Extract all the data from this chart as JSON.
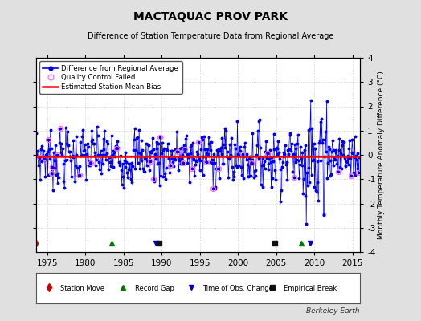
{
  "title": "MACTAQUAC PROV PARK",
  "subtitle": "Difference of Station Temperature Data from Regional Average",
  "ylabel": "Monthly Temperature Anomaly Difference (°C)",
  "xlabel_years": [
    1975,
    1980,
    1985,
    1990,
    1995,
    2000,
    2005,
    2010,
    2015
  ],
  "xlim": [
    1973.5,
    2016
  ],
  "ylim": [
    -4,
    4
  ],
  "mean_bias": -0.05,
  "background_color": "#e0e0e0",
  "plot_bg_color": "#ffffff",
  "line_color": "#0000ee",
  "bias_color": "#ff0000",
  "qc_color": "#ff66ff",
  "station_move_color": "#cc0000",
  "record_gap_color": "#007700",
  "obs_change_color": "#0000cc",
  "empirical_break_color": "#111111",
  "watermark": "Berkeley Earth",
  "station_moves": [
    1973.5
  ],
  "record_gaps": [
    1983.5,
    2008.3
  ],
  "obs_changes": [
    1989.2,
    2009.5
  ],
  "empirical_breaks": [
    1989.7,
    2004.8
  ]
}
